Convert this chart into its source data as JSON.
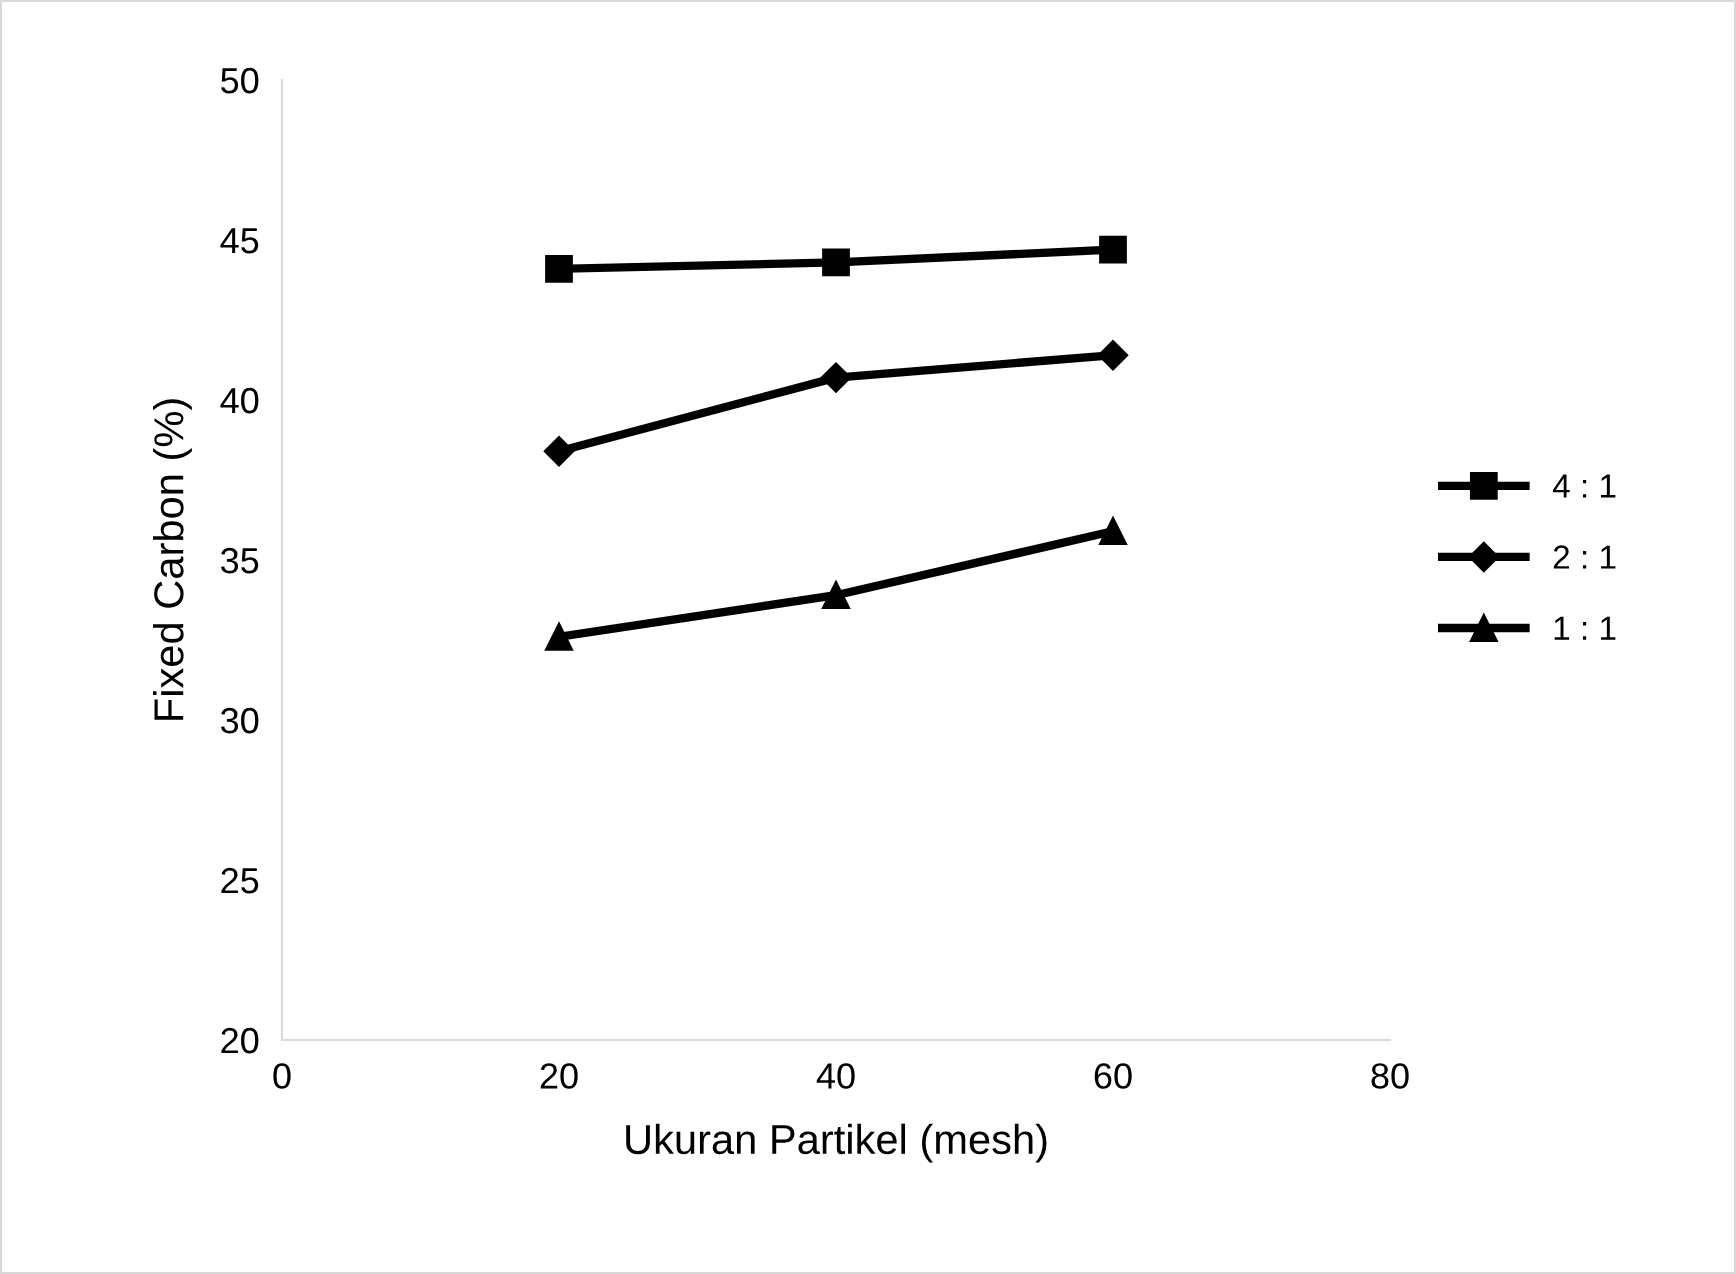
{
  "chart_data": {
    "type": "line",
    "xlabel": "Ukuran Partikel (mesh)",
    "ylabel": "Fixed Carbon (%)",
    "x": [
      20,
      40,
      60
    ],
    "series": [
      {
        "name": "4 : 1",
        "color": "#000000",
        "marker": "square",
        "values": [
          44.1,
          44.3,
          44.7
        ]
      },
      {
        "name": "2 : 1",
        "color": "#000000",
        "marker": "diamond",
        "values": [
          38.4,
          40.7,
          41.4
        ]
      },
      {
        "name": "1 : 1",
        "color": "#000000",
        "marker": "triangle",
        "values": [
          32.6,
          33.9,
          35.9
        ]
      }
    ],
    "xlim": [
      0,
      80
    ],
    "xticks": [
      0,
      20,
      40,
      60,
      80
    ],
    "ylim": [
      20,
      50
    ],
    "yticks": [
      20,
      25,
      30,
      35,
      40,
      45,
      50
    ],
    "grid": false,
    "legend": "right",
    "line_style": "solid"
  }
}
